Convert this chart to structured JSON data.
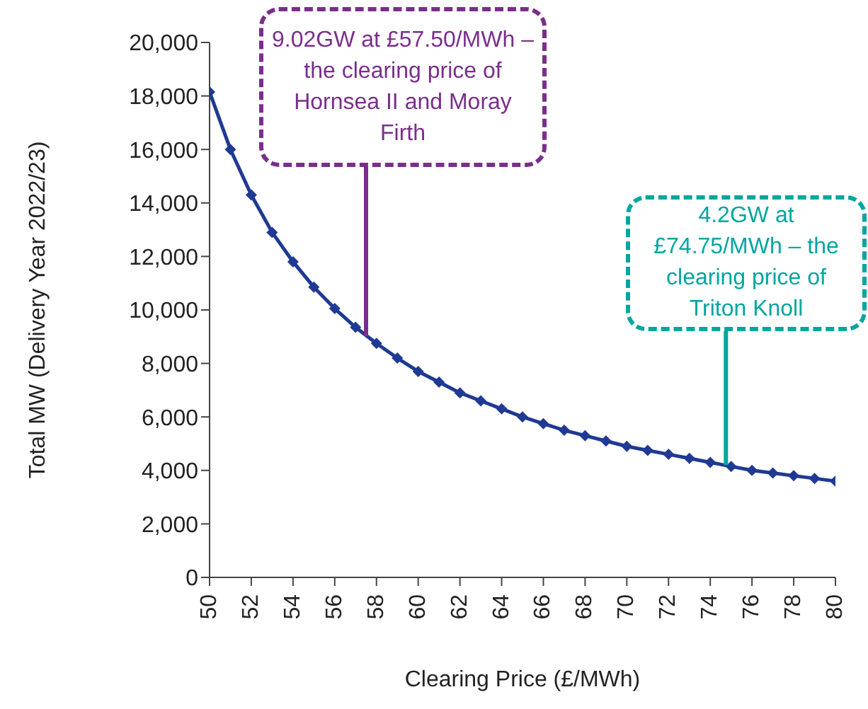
{
  "chart_data": {
    "type": "line",
    "xlabel": "Clearing Price (£/MWh)",
    "ylabel": "Total MW (Delivery Year 2022/23)",
    "x": [
      50,
      51,
      52,
      53,
      54,
      55,
      56,
      57,
      58,
      59,
      60,
      61,
      62,
      63,
      64,
      65,
      66,
      67,
      68,
      69,
      70,
      71,
      72,
      73,
      74,
      75,
      76,
      77,
      78,
      79,
      80
    ],
    "series": [
      {
        "color": "#1f3a93",
        "values": [
          18150,
          16000,
          14300,
          12900,
          11800,
          10850,
          10050,
          9350,
          8750,
          8200,
          7700,
          7300,
          6900,
          6600,
          6300,
          6000,
          5750,
          5500,
          5300,
          5100,
          4900,
          4750,
          4600,
          4450,
          4300,
          4150,
          4000,
          3900,
          3800,
          3700,
          3600
        ]
      }
    ],
    "xlim": [
      50,
      80
    ],
    "xticks": [
      50,
      52,
      54,
      56,
      58,
      60,
      62,
      64,
      66,
      68,
      70,
      72,
      74,
      76,
      78,
      80
    ],
    "ylim": [
      0,
      20000
    ],
    "yticks": [
      0,
      {
        "value": 2000,
        "label": "2,000"
      },
      {
        "value": 4000,
        "label": "4,000"
      },
      {
        "value": 6000,
        "label": "6,000"
      },
      {
        "value": 8000,
        "label": "8,000"
      },
      {
        "value": 10000,
        "label": "10,000"
      },
      {
        "value": 12000,
        "label": "12,000"
      },
      {
        "value": 14000,
        "label": "14,000"
      },
      {
        "value": 16000,
        "label": "16,000"
      },
      {
        "value": 18000,
        "label": "18,000"
      },
      {
        "value": 20000,
        "label": "20,000"
      }
    ],
    "grid": false,
    "legend": false,
    "marker": "diamond",
    "line_style": "solid",
    "annotations": [
      {
        "text": "9.02GW at £57.50/MWh – the clearing price of Hornsea II and Moray Firth",
        "x": 57.5,
        "y": 9020
      },
      {
        "text": "4.2GW at £74.75/MWh – the clearing price of Triton Knoll",
        "x": 74.75,
        "y": 4200
      }
    ]
  }
}
